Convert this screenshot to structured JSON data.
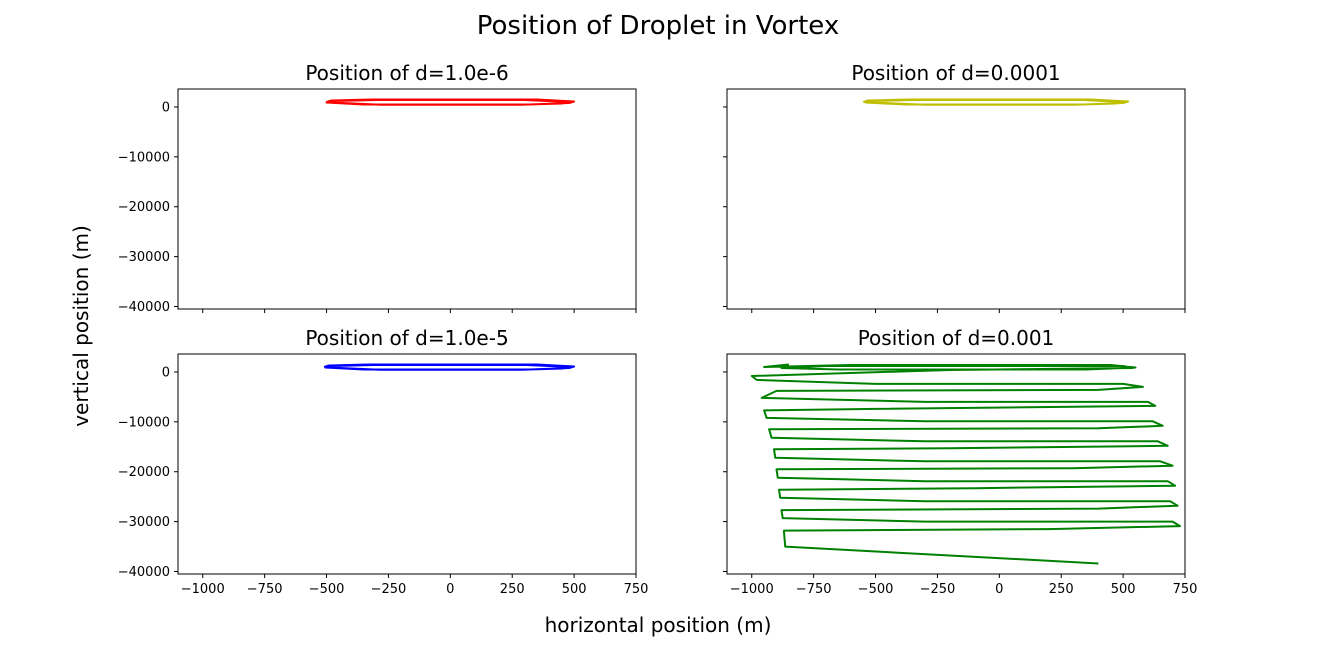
{
  "figure": {
    "title": "Position of Droplet in Vortex",
    "xlabel": "horizontal position (m)",
    "ylabel": "vertical position (m)"
  },
  "chart_data": [
    {
      "type": "line",
      "title": "Position of d=1.0e-6",
      "color": "#ff0000",
      "xlim": [
        -1100,
        750
      ],
      "ylim": [
        -40500,
        3600
      ],
      "xticks": [
        -1000,
        -750,
        -500,
        -250,
        0,
        250,
        500,
        750
      ],
      "yticks": [
        0,
        -10000,
        -20000,
        -30000,
        -40000
      ],
      "xticklabels": [
        "−1000",
        "−750",
        "−500",
        "−250",
        "0",
        "250",
        "500",
        "750"
      ],
      "yticklabels": [
        "0",
        "−10000",
        "−20000",
        "−30000",
        "−40000"
      ],
      "show_xticklabels": false,
      "show_yticklabels": true,
      "series": [
        {
          "x": [
            -500,
            -480,
            -320,
            350,
            500,
            480,
            320,
            -350,
            -500,
            -470,
            -300,
            300,
            480,
            450,
            280,
            -280,
            -480
          ],
          "y": [
            1000,
            1300,
            1500,
            1500,
            1100,
            800,
            500,
            500,
            900,
            1200,
            1400,
            1400,
            1000,
            700,
            450,
            450,
            900
          ]
        }
      ]
    },
    {
      "type": "line",
      "title": "Position of d=0.0001",
      "color": "#bfbf00",
      "xlim": [
        -1100,
        750
      ],
      "ylim": [
        -40500,
        3600
      ],
      "xticks": [
        -1000,
        -750,
        -500,
        -250,
        0,
        250,
        500,
        750
      ],
      "yticks": [
        0,
        -10000,
        -20000,
        -30000,
        -40000
      ],
      "xticklabels": [
        "−1000",
        "−750",
        "−500",
        "−250",
        "0",
        "250",
        "500",
        "750"
      ],
      "yticklabels": [
        "0",
        "−10000",
        "−20000",
        "−30000",
        "−40000"
      ],
      "show_xticklabels": false,
      "show_yticklabels": false,
      "series": [
        {
          "x": [
            -550,
            -530,
            -370,
            370,
            520,
            500,
            340,
            -380,
            -540,
            -510,
            -350,
            340,
            500,
            470,
            300,
            -300,
            -520
          ],
          "y": [
            1000,
            1300,
            1500,
            1500,
            1100,
            800,
            500,
            500,
            900,
            1200,
            1400,
            1400,
            1000,
            700,
            450,
            450,
            900
          ]
        }
      ]
    },
    {
      "type": "line",
      "title": "Position of d=1.0e-5",
      "color": "#0000ff",
      "xlim": [
        -1100,
        750
      ],
      "ylim": [
        -40500,
        3600
      ],
      "xticks": [
        -1000,
        -750,
        -500,
        -250,
        0,
        250,
        500,
        750
      ],
      "yticks": [
        0,
        -10000,
        -20000,
        -30000,
        -40000
      ],
      "xticklabels": [
        "−1000",
        "−750",
        "−500",
        "−250",
        "0",
        "250",
        "500",
        "750"
      ],
      "yticklabels": [
        "0",
        "−10000",
        "−20000",
        "−30000",
        "−40000"
      ],
      "show_xticklabels": true,
      "show_yticklabels": true,
      "series": [
        {
          "x": [
            -510,
            -490,
            -330,
            350,
            500,
            480,
            320,
            -350,
            -505,
            -475,
            -310,
            310,
            485,
            455,
            285,
            -285,
            -490
          ],
          "y": [
            1000,
            1300,
            1500,
            1500,
            1100,
            800,
            500,
            500,
            900,
            1200,
            1400,
            1400,
            1000,
            700,
            450,
            450,
            900
          ]
        }
      ]
    },
    {
      "type": "line",
      "title": "Position of d=0.001",
      "color": "#008000",
      "xlim": [
        -1100,
        750
      ],
      "ylim": [
        -40500,
        3600
      ],
      "xticks": [
        -1000,
        -750,
        -500,
        -250,
        0,
        250,
        500,
        750
      ],
      "yticks": [
        0,
        -10000,
        -20000,
        -30000,
        -40000
      ],
      "xticklabels": [
        "−1000",
        "−750",
        "−500",
        "−250",
        "0",
        "250",
        "500",
        "750"
      ],
      "yticklabels": [
        "0",
        "−10000",
        "−20000",
        "−30000",
        "−40000"
      ],
      "show_xticklabels": true,
      "show_yticklabels": false,
      "series": [
        {
          "x": [
            -850,
            -950,
            -600,
            450,
            550,
            350,
            -650,
            -880,
            -700,
            500,
            540,
            -200,
            -1000,
            -980,
            -500,
            500,
            580,
            400,
            -900,
            -960,
            -300,
            600,
            630,
            -500,
            -950,
            -940,
            -300,
            620,
            660,
            400,
            -930,
            -920,
            -300,
            640,
            680,
            -200,
            -910,
            -905,
            -300,
            650,
            700,
            300,
            -900,
            -895,
            -300,
            680,
            710,
            -100,
            -890,
            -885,
            -300,
            690,
            720,
            400,
            -880,
            -875,
            -300,
            700,
            730,
            200,
            -870,
            -865,
            400
          ],
          "y": [
            1500,
            1000,
            1400,
            1400,
            900,
            500,
            500,
            800,
            1200,
            1200,
            800,
            400,
            -800,
            -1600,
            -2400,
            -2400,
            -3000,
            -3600,
            -3800,
            -5200,
            -6000,
            -6000,
            -6800,
            -7400,
            -7700,
            -9200,
            -9900,
            -9900,
            -10800,
            -11300,
            -11500,
            -13200,
            -13900,
            -13900,
            -14800,
            -15300,
            -15500,
            -17200,
            -17900,
            -17900,
            -18800,
            -19300,
            -19500,
            -21200,
            -21900,
            -21900,
            -22800,
            -23300,
            -23600,
            -25200,
            -25900,
            -25900,
            -26800,
            -27400,
            -27700,
            -29300,
            -30000,
            -30000,
            -30900,
            -31500,
            -31800,
            -35000,
            -38400
          ]
        }
      ]
    }
  ]
}
